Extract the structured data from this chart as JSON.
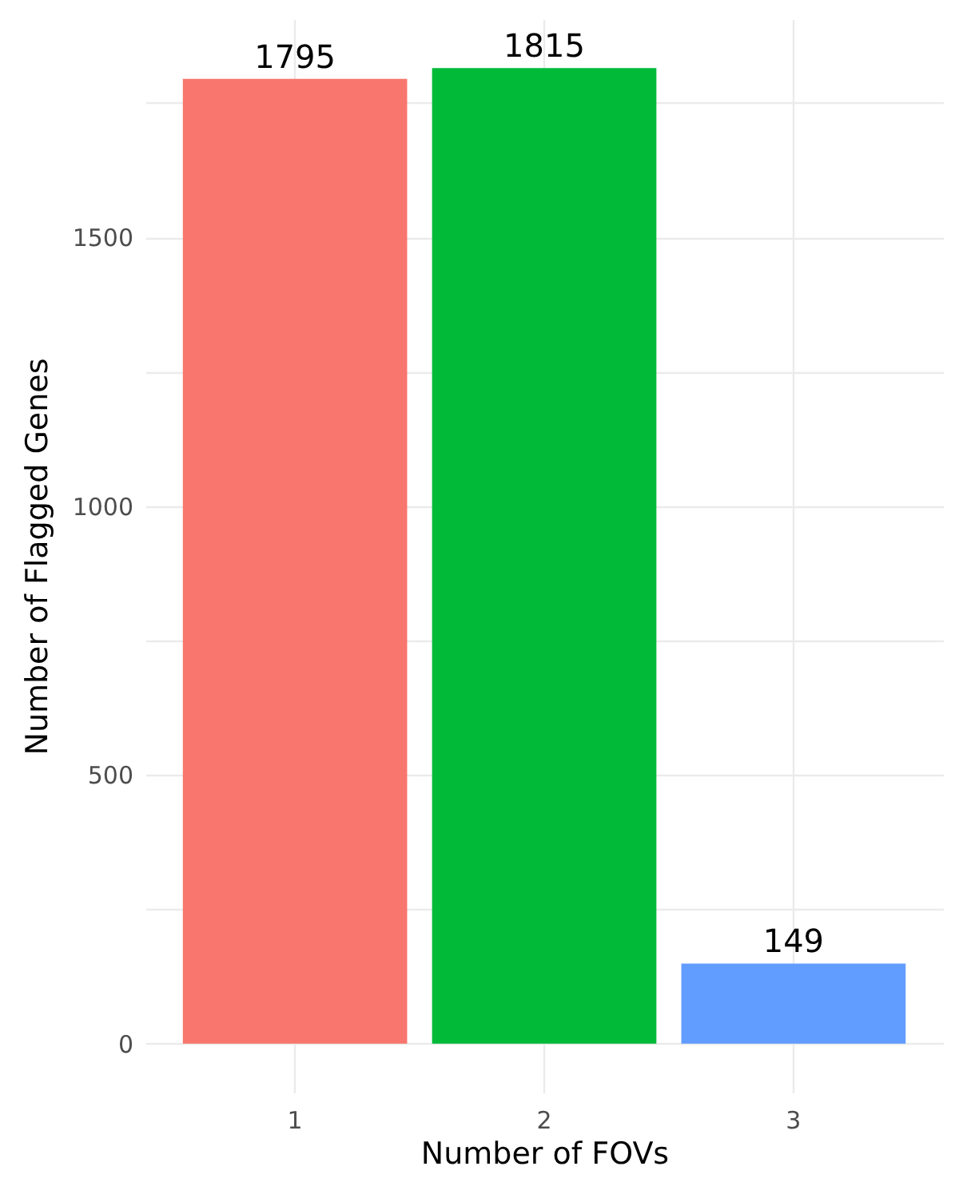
{
  "chart_data": {
    "type": "bar",
    "xlabel": "Number of FOVs",
    "ylabel": "Number of Flagged Genes",
    "categories": [
      "1",
      "2",
      "3"
    ],
    "values": [
      1795,
      1815,
      149
    ],
    "colors": [
      "#f8766d",
      "#00ba38",
      "#619cff"
    ],
    "ylim": [
      -91,
      1906
    ],
    "yticks": [
      0,
      {
        "value": 250,
        "label": null
      },
      500,
      {
        "value": 750,
        "label": null
      },
      1000,
      {
        "value": 1250,
        "label": null
      },
      1500,
      {
        "value": 1750,
        "label": null
      }
    ],
    "grid": true,
    "data_labels": true
  }
}
